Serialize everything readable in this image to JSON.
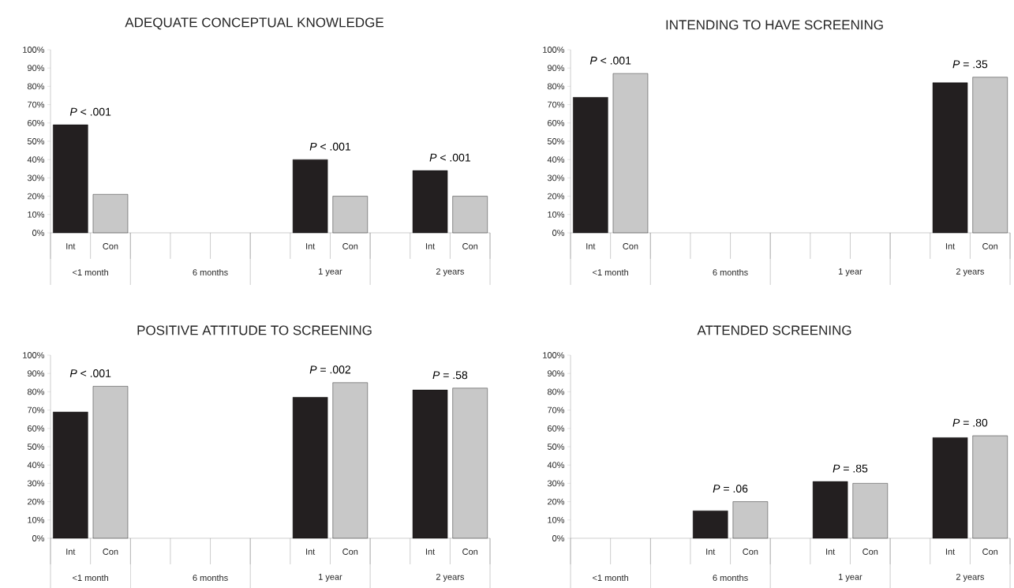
{
  "chart_data": [
    {
      "type": "bar",
      "title": "ADEQUATE CONCEPTUAL KNOWLEDGE",
      "categories": [
        "<1 month",
        "6 months",
        "1 year",
        "2 years"
      ],
      "series": [
        {
          "name": "Int",
          "color": "#231f20",
          "values": [
            59,
            null,
            40,
            34
          ]
        },
        {
          "name": "Con",
          "color": "#c8c8c8",
          "values": [
            21,
            null,
            20,
            20
          ]
        }
      ],
      "ylim": [
        0,
        100
      ],
      "yticks": [
        {
          "value": 0,
          "label": "0%"
        },
        {
          "value": 10,
          "label": "10%"
        },
        {
          "value": 20,
          "label": "20%"
        },
        {
          "value": 30,
          "label": "30%"
        },
        {
          "value": 40,
          "label": "40%"
        },
        {
          "value": 50,
          "label": "50%"
        },
        {
          "value": 60,
          "label": "60%"
        },
        {
          "value": 70,
          "label": "70%"
        },
        {
          "value": 80,
          "label": "80%"
        },
        {
          "value": 90,
          "label": "90%"
        },
        {
          "value": 100,
          "label": "100%"
        }
      ],
      "annotations": [
        "*P* < .001",
        "*P* < .001",
        "*P* < .001"
      ]
    },
    {
      "type": "bar",
      "title": "INTENDING TO HAVE SCREENING",
      "categories": [
        "<1 month",
        "6 months",
        "1 year",
        "2 years"
      ],
      "series": [
        {
          "name": "Int",
          "color": "#231f20",
          "values": [
            74,
            null,
            null,
            82
          ]
        },
        {
          "name": "Con",
          "color": "#c8c8c8",
          "values": [
            87,
            null,
            null,
            85
          ]
        }
      ],
      "ylim": [
        0,
        100
      ],
      "yticks": [
        {
          "value": 0,
          "label": "0%"
        },
        {
          "value": 10,
          "label": "10%"
        },
        {
          "value": 20,
          "label": "20%"
        },
        {
          "value": 30,
          "label": "30%"
        },
        {
          "value": 40,
          "label": "40%"
        },
        {
          "value": 50,
          "label": "50%"
        },
        {
          "value": 60,
          "label": "60%"
        },
        {
          "value": 70,
          "label": "70%"
        },
        {
          "value": 80,
          "label": "80%"
        },
        {
          "value": 90,
          "label": "90%"
        },
        {
          "value": 100,
          "label": "100%"
        }
      ],
      "annotations": [
        "*P* < .001",
        "*P* = .35"
      ]
    },
    {
      "type": "bar",
      "title": "POSITIVE ATTITUDE TO SCREENING",
      "categories": [
        "<1 month",
        "6 months",
        "1 year",
        "2 years"
      ],
      "series": [
        {
          "name": "Int",
          "color": "#231f20",
          "values": [
            69,
            null,
            77,
            81
          ]
        },
        {
          "name": "Con",
          "color": "#c8c8c8",
          "values": [
            83,
            null,
            85,
            82
          ]
        }
      ],
      "ylim": [
        0,
        100
      ],
      "yticks": [
        {
          "value": 0,
          "label": "0%"
        },
        {
          "value": 10,
          "label": "10%"
        },
        {
          "value": 20,
          "label": "20%"
        },
        {
          "value": 30,
          "label": "30%"
        },
        {
          "value": 40,
          "label": "40%"
        },
        {
          "value": 50,
          "label": "50%"
        },
        {
          "value": 60,
          "label": "60%"
        },
        {
          "value": 70,
          "label": "70%"
        },
        {
          "value": 80,
          "label": "80%"
        },
        {
          "value": 90,
          "label": "90%"
        },
        {
          "value": 100,
          "label": "100%"
        }
      ],
      "annotations": [
        "*P* < .001",
        "*P* = .002",
        "*P* = .58"
      ]
    },
    {
      "type": "bar",
      "title": "ATTENDED SCREENING",
      "categories": [
        "<1 month",
        "6 months",
        "1 year",
        "2 years"
      ],
      "series": [
        {
          "name": "Int",
          "color": "#231f20",
          "values": [
            null,
            15,
            31,
            55
          ]
        },
        {
          "name": "Con",
          "color": "#c8c8c8",
          "values": [
            null,
            20,
            30,
            56
          ]
        }
      ],
      "ylim": [
        0,
        100
      ],
      "yticks": [
        {
          "value": 0,
          "label": "0%"
        },
        {
          "value": 10,
          "label": "10%"
        },
        {
          "value": 20,
          "label": "20%"
        },
        {
          "value": 30,
          "label": "30%"
        },
        {
          "value": 40,
          "label": "40%"
        },
        {
          "value": 50,
          "label": "50%"
        },
        {
          "value": 60,
          "label": "60%"
        },
        {
          "value": 70,
          "label": "70%"
        },
        {
          "value": 80,
          "label": "80%"
        },
        {
          "value": 90,
          "label": "90%"
        },
        {
          "value": 100,
          "label": "100%"
        }
      ],
      "annotations": [
        "*P* = .06",
        "*P* = .85",
        "*P* = .80"
      ]
    }
  ]
}
